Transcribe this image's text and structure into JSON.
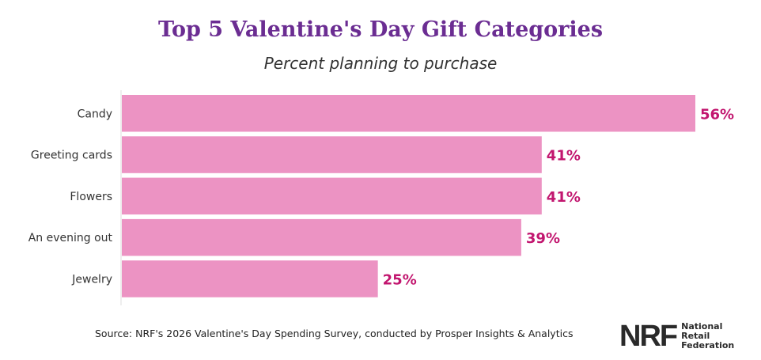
{
  "chart_data": {
    "type": "bar",
    "orientation": "horizontal",
    "title": "Top 5 Valentine's Day Gift Categories",
    "subtitle": "Percent planning to purchase",
    "categories": [
      "Candy",
      "Greeting cards",
      "Flowers",
      "An evening out",
      "Jewelry"
    ],
    "values": [
      56,
      41,
      41,
      39,
      25
    ],
    "data_labels": [
      "56%",
      "41%",
      "41%",
      "39%",
      "25%"
    ],
    "xlim": [
      0,
      56
    ],
    "grid": false,
    "colors": {
      "bar": "#ec93c3",
      "label": "#c2166f",
      "title": "#6b2d92"
    }
  },
  "source": "Source: NRF's 2026 Valentine's Day Spending Survey, conducted by Prosper Insights & Analytics",
  "logo": {
    "mark": "NRF",
    "text": [
      "National",
      "Retail",
      "Federation"
    ]
  }
}
